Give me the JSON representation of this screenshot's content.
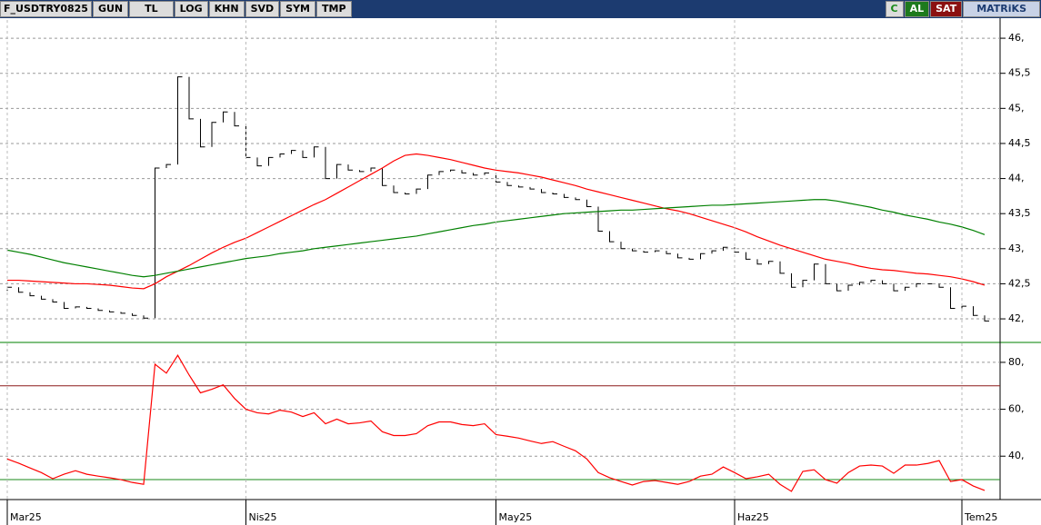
{
  "toolbar": {
    "symbol": "F_USDTRY0825",
    "buttons": [
      "GUN",
      "TL",
      "LOG",
      "KHN",
      "SVD",
      "SYM",
      "TMP"
    ],
    "right_buttons": [
      "C",
      "AL",
      "SAT",
      "MATRiKS"
    ]
  },
  "chart_data": [
    {
      "type": "stock",
      "ylim": [
        41.69,
        46.26
      ],
      "yticks": [
        {
          "value": 46,
          "label": "46,"
        },
        {
          "value": 45.5,
          "label": "45,5"
        },
        {
          "value": 45,
          "label": "45,"
        },
        {
          "value": 44.5,
          "label": "44,5"
        },
        {
          "value": 44,
          "label": "44,"
        },
        {
          "value": 43.5,
          "label": "43,5"
        },
        {
          "value": 43,
          "label": "43,"
        },
        {
          "value": 42.5,
          "label": "42,5"
        },
        {
          "value": 42,
          "label": "42,"
        }
      ],
      "grid": true,
      "series": [
        {
          "color": "#000000",
          "values": [
            42.45,
            42.38,
            42.33,
            42.28,
            42.24,
            42.15,
            42.17,
            42.15,
            42.12,
            42.1,
            42.08,
            42.05,
            42.01,
            44.15,
            44.2,
            45.45,
            44.85,
            44.45,
            44.8,
            44.95,
            44.75,
            44.3,
            44.18,
            44.3,
            44.35,
            44.4,
            44.3,
            44.45,
            44.0,
            44.2,
            44.12,
            44.1,
            44.15,
            43.9,
            43.8,
            43.78,
            43.85,
            44.05,
            44.1,
            44.12,
            44.08,
            44.05,
            44.08,
            43.95,
            43.9,
            43.88,
            43.85,
            43.8,
            43.78,
            43.73,
            43.7,
            43.6,
            43.25,
            43.1,
            43.0,
            42.97,
            42.95,
            42.97,
            42.93,
            42.87,
            42.85,
            42.93,
            42.97,
            43.02,
            42.95,
            42.85,
            42.78,
            42.82,
            42.65,
            42.45,
            42.55,
            42.78,
            42.5,
            42.4,
            42.48,
            42.52,
            42.55,
            42.5,
            42.4,
            42.45,
            42.5,
            42.5,
            42.45,
            42.15,
            42.18,
            42.05,
            41.97
          ]
        },
        {
          "color": "#ff0000",
          "values": [
            42.55,
            42.55,
            42.54,
            42.53,
            42.52,
            42.51,
            42.5,
            42.5,
            42.49,
            42.48,
            42.46,
            42.44,
            42.43,
            42.5,
            42.6,
            42.68,
            42.76,
            42.85,
            42.94,
            43.02,
            43.09,
            43.15,
            43.23,
            43.31,
            43.39,
            43.47,
            43.55,
            43.63,
            43.7,
            43.79,
            43.88,
            43.97,
            44.06,
            44.15,
            44.25,
            44.33,
            44.35,
            44.33,
            44.3,
            44.27,
            44.23,
            44.19,
            44.15,
            44.12,
            44.1,
            44.08,
            44.05,
            44.02,
            43.98,
            43.94,
            43.9,
            43.85,
            43.81,
            43.77,
            43.73,
            43.69,
            43.65,
            43.61,
            43.57,
            43.54,
            43.5,
            43.45,
            43.4,
            43.35,
            43.3,
            43.24,
            43.17,
            43.11,
            43.05,
            43.0,
            42.95,
            42.9,
            42.85,
            42.82,
            42.79,
            42.75,
            42.72,
            42.7,
            42.69,
            42.67,
            42.65,
            42.64,
            42.62,
            42.6,
            42.57,
            42.53,
            42.48
          ]
        },
        {
          "color": "#008000",
          "values": [
            42.98,
            42.95,
            42.92,
            42.88,
            42.84,
            42.8,
            42.77,
            42.74,
            42.71,
            42.68,
            42.65,
            42.62,
            42.6,
            42.62,
            42.65,
            42.68,
            42.71,
            42.74,
            42.77,
            42.8,
            42.83,
            42.86,
            42.88,
            42.9,
            42.93,
            42.95,
            42.97,
            43.0,
            43.02,
            43.04,
            43.06,
            43.08,
            43.1,
            43.12,
            43.14,
            43.16,
            43.18,
            43.21,
            43.24,
            43.27,
            43.3,
            43.33,
            43.35,
            43.38,
            43.4,
            43.42,
            43.44,
            43.46,
            43.48,
            43.5,
            43.51,
            43.52,
            43.53,
            43.54,
            43.55,
            43.55,
            43.56,
            43.57,
            43.58,
            43.59,
            43.6,
            43.61,
            43.62,
            43.62,
            43.63,
            43.64,
            43.65,
            43.66,
            43.67,
            43.68,
            43.69,
            43.7,
            43.7,
            43.68,
            43.65,
            43.62,
            43.59,
            43.55,
            43.52,
            43.48,
            43.45,
            43.42,
            43.38,
            43.35,
            43.31,
            43.26,
            43.2
          ]
        }
      ]
    },
    {
      "type": "line",
      "ylim": [
        21.5,
        88.1
      ],
      "yticks": [
        {
          "value": 80,
          "label": "80,"
        },
        {
          "value": 60,
          "label": "60,"
        },
        {
          "value": 40,
          "label": "40,"
        }
      ],
      "grid": true,
      "categories": [
        "Mar25",
        null,
        null,
        null,
        null,
        null,
        null,
        null,
        null,
        null,
        null,
        null,
        null,
        null,
        null,
        null,
        null,
        null,
        null,
        null,
        null,
        "Nis25",
        null,
        null,
        null,
        null,
        null,
        null,
        null,
        null,
        null,
        null,
        null,
        null,
        null,
        null,
        null,
        null,
        null,
        null,
        null,
        null,
        null,
        "May25",
        null,
        null,
        null,
        null,
        null,
        null,
        null,
        null,
        null,
        null,
        null,
        null,
        null,
        null,
        null,
        null,
        null,
        null,
        null,
        null,
        "Haz25",
        null,
        null,
        null,
        null,
        null,
        null,
        null,
        null,
        null,
        null,
        null,
        null,
        null,
        null,
        null,
        null,
        null,
        null,
        null,
        "Tem25",
        null,
        null
      ],
      "reference_lines": [
        {
          "value": 70,
          "color": "#8b1a1a"
        },
        {
          "value": 30,
          "color": "#1a8a1a"
        }
      ],
      "series": [
        {
          "color": "#ff0000",
          "values": [
            38.8,
            37,
            35,
            33,
            30.4,
            32.3,
            33.8,
            32.3,
            31.5,
            30.8,
            30,
            28.8,
            28,
            79.2,
            75.4,
            83,
            74.6,
            67,
            68.5,
            70.4,
            64.6,
            60,
            58.5,
            58,
            59.6,
            58.8,
            56.9,
            58.5,
            53.8,
            55.8,
            53.8,
            54.2,
            55,
            50.4,
            48.8,
            48.8,
            49.6,
            53,
            54.6,
            54.6,
            53.5,
            53,
            53.8,
            49.2,
            48.5,
            47.7,
            46.5,
            45.4,
            46.2,
            44.2,
            42.3,
            38.8,
            33,
            30.8,
            29.2,
            27.7,
            29.2,
            29.6,
            28.8,
            28,
            29.2,
            31.5,
            32.3,
            35.4,
            33,
            30.4,
            31.2,
            32.3,
            28,
            25,
            33.5,
            34.2,
            30,
            28.5,
            33,
            35.8,
            36.2,
            35.8,
            32.7,
            36.2,
            36.2,
            36.9,
            38.1,
            29.2,
            30,
            27.3,
            25.4
          ]
        }
      ]
    }
  ]
}
